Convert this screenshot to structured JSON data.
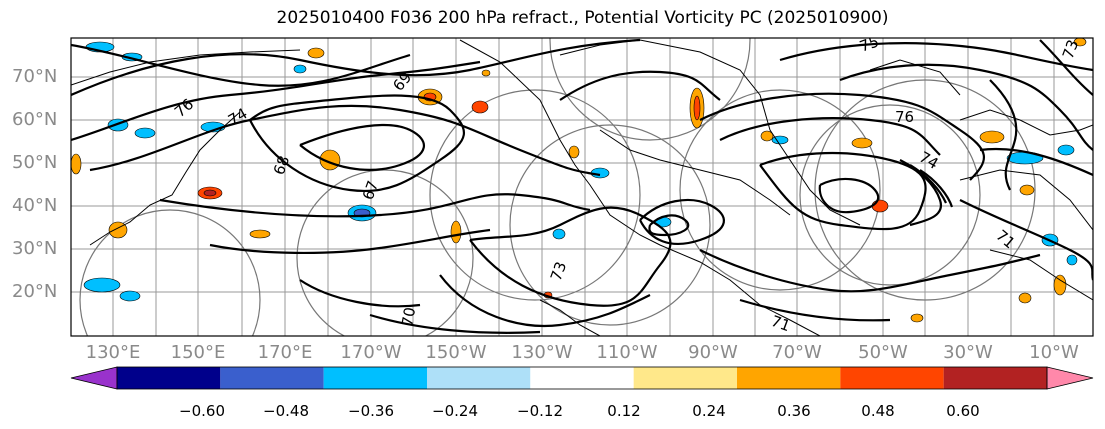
{
  "title": "2025010400 F036 200 hPa refract., Potential Vorticity PC (2025010900)",
  "lat_labels": [
    "70°N",
    "60°N",
    "50°N",
    "40°N",
    "30°N",
    "20°N"
  ],
  "lon_labels": [
    "130°E",
    "150°E",
    "170°E",
    "170°W",
    "150°W",
    "130°W",
    "110°W",
    "90°W",
    "70°W",
    "50°W",
    "30°W",
    "10°W"
  ],
  "contour_labels": [
    "76",
    "74",
    "69",
    "68",
    "67",
    "73",
    "70",
    "75",
    "76",
    "74",
    "73",
    "71",
    "71"
  ],
  "colorbar": {
    "ticks": [
      "−0.60",
      "−0.48",
      "−0.36",
      "−0.24",
      "−0.12",
      "0.12",
      "0.24",
      "0.36",
      "0.48",
      "0.60"
    ],
    "colors": [
      "#9932cc",
      "#00008b",
      "#3a5fcd",
      "#00bfff",
      "#aee0f8",
      "#ffffff",
      "#ffe88a",
      "#ffa500",
      "#ff4500",
      "#b22222",
      "#ff88aa"
    ]
  }
}
